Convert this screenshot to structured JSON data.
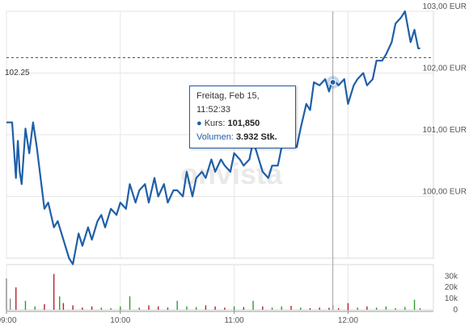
{
  "chart_data": {
    "type": "line",
    "price": {
      "x": [
        "09:00",
        "09:03",
        "09:05",
        "09:06",
        "09:07",
        "09:08",
        "09:10",
        "09:12",
        "09:14",
        "09:16",
        "09:18",
        "09:20",
        "09:22",
        "09:25",
        "09:27",
        "09:30",
        "09:33",
        "09:35",
        "09:38",
        "09:40",
        "09:43",
        "09:45",
        "09:48",
        "09:50",
        "09:52",
        "09:55",
        "09:58",
        "10:00",
        "10:03",
        "10:05",
        "10:08",
        "10:10",
        "10:13",
        "10:15",
        "10:18",
        "10:20",
        "10:23",
        "10:25",
        "10:28",
        "10:30",
        "10:33",
        "10:35",
        "10:38",
        "10:40",
        "10:43",
        "10:45",
        "10:48",
        "10:50",
        "10:53",
        "10:55",
        "10:58",
        "11:00",
        "11:03",
        "11:05",
        "11:08",
        "11:10",
        "11:13",
        "11:15",
        "11:18",
        "11:20",
        "11:23",
        "11:25",
        "11:28",
        "11:30",
        "11:33",
        "11:35",
        "11:38",
        "11:40",
        "11:42",
        "11:45",
        "11:48",
        "11:50",
        "11:52",
        "11:55",
        "11:58",
        "12:00",
        "12:03",
        "12:05",
        "12:08",
        "12:10",
        "12:13",
        "12:15",
        "12:18",
        "12:20",
        "12:23",
        "12:25",
        "12:28",
        "12:30",
        "12:33",
        "12:35",
        "12:37",
        "12:38"
      ],
      "y": [
        101.2,
        101.2,
        100.3,
        100.9,
        100.4,
        100.2,
        101.1,
        100.7,
        101.2,
        100.8,
        100.3,
        99.8,
        99.9,
        99.5,
        99.6,
        99.3,
        99.0,
        98.9,
        99.4,
        99.2,
        99.5,
        99.3,
        99.6,
        99.7,
        99.5,
        99.8,
        99.7,
        99.9,
        99.8,
        100.2,
        99.9,
        100.1,
        100.2,
        99.9,
        100.3,
        100.0,
        100.2,
        99.9,
        100.1,
        100.1,
        100.0,
        100.4,
        100.0,
        100.3,
        100.4,
        100.3,
        100.6,
        100.4,
        100.6,
        100.5,
        100.4,
        100.7,
        100.6,
        100.5,
        100.6,
        100.9,
        100.6,
        100.4,
        100.3,
        100.5,
        100.5,
        100.8,
        101.0,
        100.9,
        100.8,
        101.1,
        101.5,
        101.4,
        101.85,
        101.8,
        101.9,
        101.7,
        101.9,
        101.8,
        101.9,
        101.5,
        101.8,
        101.9,
        102.0,
        101.8,
        101.9,
        102.2,
        102.2,
        102.3,
        102.5,
        102.8,
        102.9,
        103.0,
        102.5,
        102.7,
        102.4,
        102.4
      ]
    },
    "volume": {
      "x": [
        "09:00",
        "09:02",
        "09:05",
        "09:10",
        "09:15",
        "09:20",
        "09:25",
        "09:28",
        "09:30",
        "09:35",
        "09:40",
        "09:45",
        "09:50",
        "09:55",
        "10:00",
        "10:05",
        "10:10",
        "10:15",
        "10:20",
        "10:25",
        "10:30",
        "10:35",
        "10:40",
        "10:45",
        "10:50",
        "10:55",
        "11:00",
        "11:05",
        "11:10",
        "11:15",
        "11:20",
        "11:25",
        "11:30",
        "11:35",
        "11:40",
        "11:45",
        "11:50",
        "11:52",
        "11:55",
        "12:00",
        "12:05",
        "12:10",
        "12:15",
        "12:20",
        "12:25",
        "12:30",
        "12:35",
        "12:38"
      ],
      "y": [
        28000,
        10000,
        20000,
        8000,
        3000,
        5000,
        32000,
        12000,
        6000,
        4000,
        2000,
        3000,
        2000,
        1500,
        3000,
        12000,
        2000,
        4000,
        3000,
        2000,
        8000,
        3000,
        2500,
        4000,
        3000,
        2000,
        3000,
        2500,
        8000,
        3000,
        2000,
        3000,
        3500,
        2000,
        1500,
        2000,
        1800,
        3932,
        1500,
        6000,
        2000,
        3000,
        2000,
        3000,
        1500,
        2500,
        9000,
        1500
      ]
    },
    "y_ticks": [
      "100,00 EUR",
      "101,00 EUR",
      "102,00 EUR",
      "103,00 EUR"
    ],
    "y_tick_values": [
      100,
      101,
      102,
      103
    ],
    "ylim": [
      99.0,
      103.0
    ],
    "volume_ticks": [
      "0",
      "10k",
      "20k",
      "30k"
    ],
    "volume_tick_values": [
      0,
      10000,
      20000,
      30000
    ],
    "volume_lim": [
      0,
      36000
    ],
    "x_ticks": [
      "09:00",
      "10:00",
      "11:00",
      "12:00"
    ],
    "xlim": [
      "09:00",
      "12:45"
    ],
    "reference": {
      "value": 102.25,
      "label": "102.25"
    },
    "watermark": "onvista",
    "line_color": "#1f5fa8",
    "grid": true,
    "tooltip": {
      "x": "11:52",
      "y": 101.85,
      "datetime": "Freitag, Feb 15, 11:52:33",
      "kurs_label": "Kurs:",
      "kurs_value": "101,850",
      "volumen_label": "Volumen:",
      "volumen_value": "3.932 Stk."
    }
  }
}
